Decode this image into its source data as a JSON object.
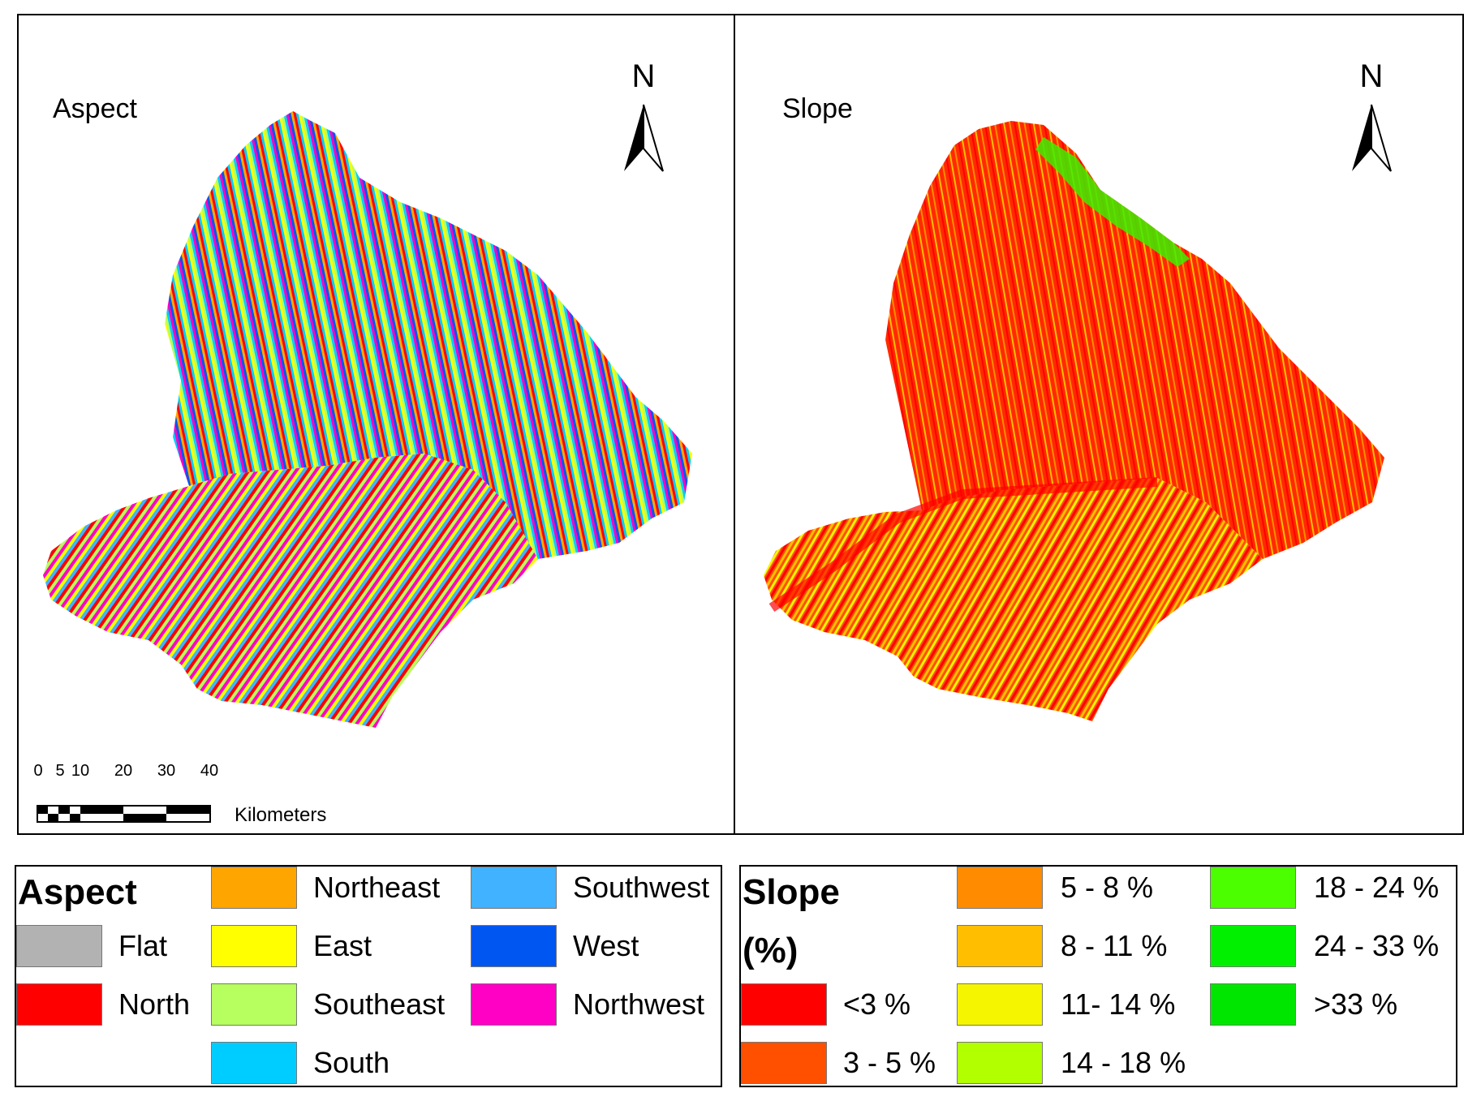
{
  "aspect_map": {
    "title": "Aspect",
    "north_label": "N",
    "scale_bar": {
      "ticks": [
        "0",
        "5",
        "10",
        "20",
        "30",
        "40"
      ],
      "unit": "Kilometers"
    }
  },
  "slope_map": {
    "title": "Slope",
    "north_label": "N"
  },
  "aspect_legend": {
    "title": "Aspect",
    "items": [
      {
        "label": "Flat",
        "color": "#b2b2b2"
      },
      {
        "label": "North",
        "color": "#ff0000"
      },
      {
        "label": "Northeast",
        "color": "#ffa500"
      },
      {
        "label": "East",
        "color": "#ffff00"
      },
      {
        "label": "Southeast",
        "color": "#b6ff5e"
      },
      {
        "label": "South",
        "color": "#00cdff"
      },
      {
        "label": "Southwest",
        "color": "#40b2ff"
      },
      {
        "label": "West",
        "color": "#0056f0"
      },
      {
        "label": "Northwest",
        "color": "#ff00c5"
      }
    ]
  },
  "slope_legend": {
    "title_line1": "Slope",
    "title_line2": "(%)",
    "items": [
      {
        "label": "<3 %",
        "color": "#ff0000"
      },
      {
        "label": "3 - 5 %",
        "color": "#ff5000"
      },
      {
        "label": "5 - 8 %",
        "color": "#ff8c00"
      },
      {
        "label": "8 - 11 %",
        "color": "#ffbf00"
      },
      {
        "label": "11- 14 %",
        "color": "#f5f500"
      },
      {
        "label": "14 - 18 %",
        "color": "#b2ff00"
      },
      {
        "label": "18 - 24 %",
        "color": "#4cff00"
      },
      {
        "label": "24 - 33 %",
        "color": "#00f000"
      },
      {
        "label": ">33 %",
        "color": "#00e600"
      }
    ]
  }
}
